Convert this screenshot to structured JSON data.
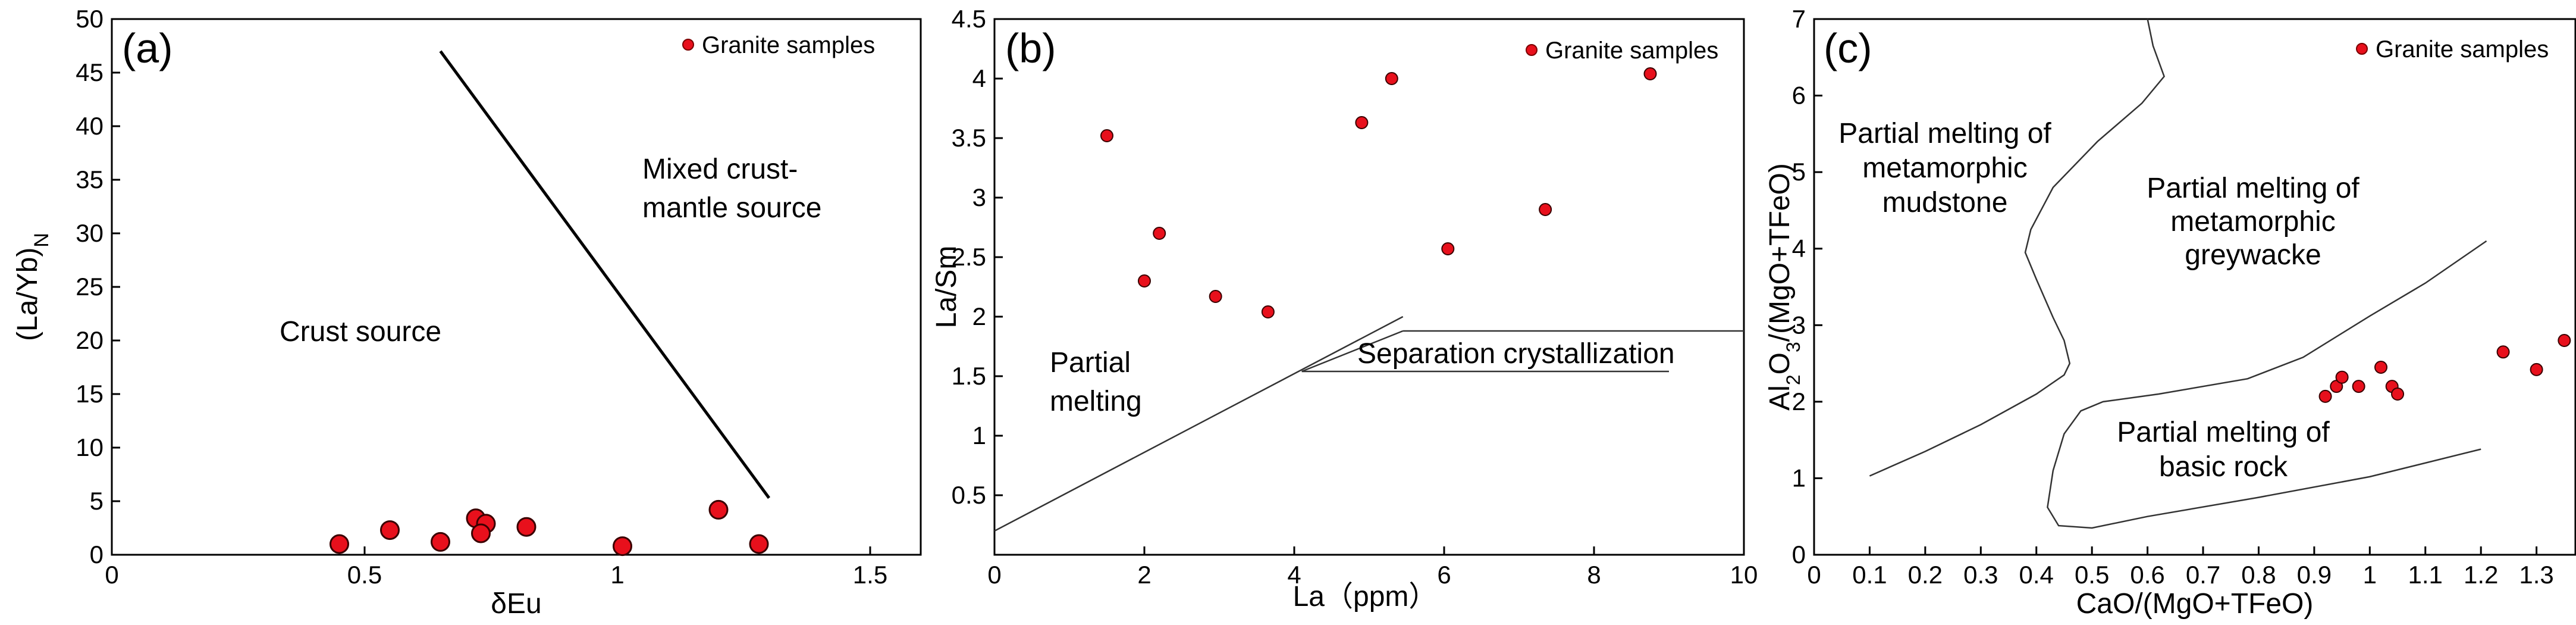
{
  "chart_data": [
    {
      "type": "scatter",
      "panel_label": "(a)",
      "legend": "Granite samples",
      "xlabel": "δEu",
      "ylabel_main": "(La/Yb)",
      "ylabel_sub": "N",
      "xlim": [
        0,
        1.6
      ],
      "ylim": [
        0,
        50
      ],
      "xticks": [
        0,
        0.5,
        1,
        1.5
      ],
      "xtick_labels": [
        "0",
        "0.5",
        "1",
        "1.5"
      ],
      "yticks": [
        0,
        5,
        10,
        15,
        20,
        25,
        30,
        35,
        40,
        45,
        50
      ],
      "ytick_labels": [
        "0",
        "5",
        "10",
        "15",
        "20",
        "25",
        "30",
        "35",
        "40",
        "45",
        "50"
      ],
      "series": [
        {
          "name": "Granite samples",
          "x": [
            0.45,
            0.55,
            0.65,
            0.72,
            0.74,
            0.73,
            0.82,
            1.01,
            1.2,
            1.28
          ],
          "y": [
            1.0,
            2.3,
            1.2,
            3.4,
            2.9,
            2.0,
            2.6,
            0.8,
            4.2,
            1.0
          ]
        }
      ],
      "boundary": {
        "x": [
          0.65,
          1.3
        ],
        "y": [
          47,
          5.3
        ]
      },
      "annotations": [
        "Crust source",
        "Mixed crust-",
        "mantle source"
      ],
      "colors": {
        "marker": "#e8101c"
      }
    },
    {
      "type": "scatter",
      "panel_label": "(b)",
      "legend": "Granite samples",
      "xlabel": "La（ppm）",
      "ylabel": "La/Sm",
      "xlim": [
        0,
        10
      ],
      "ylim": [
        0,
        4.5
      ],
      "xticks": [
        0,
        2,
        4,
        6,
        8,
        10
      ],
      "xtick_labels": [
        "0",
        "2",
        "4",
        "6",
        "8",
        "10"
      ],
      "yticks": [
        0.5,
        1,
        1.5,
        2,
        2.5,
        3,
        3.5,
        4,
        4.5
      ],
      "ytick_labels": [
        "0.5",
        "1",
        "1.5",
        "2",
        "2.5",
        "3",
        "3.5",
        "4",
        "4.5"
      ],
      "series": [
        {
          "name": "Granite samples",
          "x": [
            1.5,
            2.0,
            2.2,
            2.95,
            3.65,
            4.9,
            5.3,
            6.05,
            7.35,
            8.75
          ],
          "y": [
            3.52,
            2.3,
            2.7,
            2.17,
            2.04,
            3.63,
            4.0,
            2.57,
            2.9,
            4.04
          ]
        }
      ],
      "melting_trend": {
        "x": [
          0,
          5.45
        ],
        "y": [
          0.2,
          2.0
        ]
      },
      "crystallization_lines": [
        {
          "x": [
            5.45,
            10
          ],
          "y": [
            1.88,
            1.88
          ]
        },
        {
          "x": [
            4.1,
            9.0
          ],
          "y": [
            1.54,
            1.54
          ]
        },
        {
          "x": [
            4.1,
            5.45
          ],
          "y": [
            1.54,
            1.88
          ]
        }
      ],
      "annotations": [
        "Partial",
        "melting",
        "Separation crystallization"
      ],
      "colors": {
        "marker": "#e8101c"
      }
    },
    {
      "type": "scatter",
      "panel_label": "(c)",
      "legend": "Granite samples",
      "xlabel": "CaO/(MgO+TFeO)",
      "ylabel_parts": [
        "Al",
        "2",
        "O",
        "3",
        "/(MgO+TFeO)"
      ],
      "xlim": [
        0,
        1.37
      ],
      "ylim": [
        0,
        7
      ],
      "xticks": [
        0,
        0.1,
        0.2,
        0.3,
        0.4,
        0.5,
        0.6,
        0.7,
        0.8,
        0.9,
        1,
        1.1,
        1.2,
        1.3
      ],
      "xtick_labels": [
        "0",
        "0.1",
        "0.2",
        "0.3",
        "0.4",
        "0.5",
        "0.6",
        "0.7",
        "0.8",
        "0.9",
        "1",
        "1.1",
        "1.2",
        "1.3"
      ],
      "yticks": [
        0,
        1,
        2,
        3,
        4,
        5,
        6,
        7
      ],
      "ytick_labels": [
        "0",
        "1",
        "2",
        "3",
        "4",
        "5",
        "6",
        "7"
      ],
      "series": [
        {
          "name": "Granite samples",
          "x": [
            0.92,
            0.94,
            0.95,
            0.98,
            1.02,
            1.04,
            1.05,
            1.24,
            1.3,
            1.35
          ],
          "y": [
            2.07,
            2.2,
            2.32,
            2.2,
            2.45,
            2.2,
            2.1,
            2.65,
            2.42,
            2.8
          ]
        }
      ],
      "boundary_mudstone": {
        "x": [
          0.6,
          0.61,
          0.63,
          0.59,
          0.51,
          0.43,
          0.39,
          0.38,
          0.4,
          0.43,
          0.45,
          0.46,
          0.45,
          0.4,
          0.3,
          0.2,
          0.1
        ],
        "y": [
          7.0,
          6.65,
          6.25,
          5.9,
          5.4,
          4.8,
          4.25,
          3.95,
          3.6,
          3.1,
          2.8,
          2.5,
          2.35,
          2.1,
          1.7,
          1.35,
          1.03
        ]
      },
      "boundary_greywacke": {
        "x": [
          1.21,
          1.1,
          1.0,
          0.88,
          0.78,
          0.62,
          0.52,
          0.48,
          0.45,
          0.43,
          0.42,
          0.44,
          0.5,
          0.6,
          0.8,
          1.0,
          1.2
        ],
        "y": [
          4.1,
          3.55,
          3.12,
          2.58,
          2.3,
          2.1,
          2.0,
          1.88,
          1.58,
          1.1,
          0.62,
          0.38,
          0.35,
          0.5,
          0.75,
          1.02,
          1.38
        ]
      },
      "annotations": [
        "Partial melting of",
        "metamorphic",
        "mudstone",
        "Partial melting of",
        "metamorphic",
        "greywacke",
        "Partial melting of",
        "basic rock"
      ],
      "colors": {
        "marker": "#e8101c"
      }
    }
  ]
}
